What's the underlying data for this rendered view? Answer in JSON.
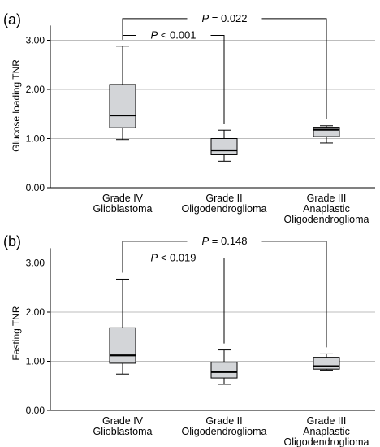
{
  "chart_data": [
    {
      "type": "box",
      "panel_label": "(a)",
      "ylabel": "Glucose loading TNR",
      "ylim": [
        0,
        3.3
      ],
      "yticks": [
        "0.00",
        "1.00",
        "2.00",
        "3.00"
      ],
      "grid": true,
      "categories": [
        [
          "Grade IV",
          "Glioblastoma"
        ],
        [
          "Grade II",
          "Oligodendroglioma"
        ],
        [
          "Grade III",
          "Anaplastic",
          "Oligodendroglioma"
        ]
      ],
      "boxes": [
        {
          "min": 0.98,
          "q1": 1.22,
          "median": 1.47,
          "q3": 2.1,
          "max": 2.88
        },
        {
          "min": 0.54,
          "q1": 0.67,
          "median": 0.76,
          "q3": 1.0,
          "max": 1.17
        },
        {
          "min": 0.91,
          "q1": 1.04,
          "median": 1.18,
          "q3": 1.23,
          "max": 1.26
        }
      ],
      "comparisons": [
        {
          "from": 0,
          "to": 1,
          "p": "P",
          "rel": " < 0.001",
          "level": 3.1
        },
        {
          "from": 0,
          "to": 2,
          "p": "P",
          "rel": " = 0.022",
          "level": 3.44
        }
      ]
    },
    {
      "type": "box",
      "panel_label": "(b)",
      "ylabel": "Fasting TNR",
      "ylim": [
        0,
        3.3
      ],
      "yticks": [
        "0.00",
        "1.00",
        "2.00",
        "3.00"
      ],
      "grid": true,
      "categories": [
        [
          "Grade IV",
          "Glioblastoma"
        ],
        [
          "Grade II",
          "Oligodendroglioma"
        ],
        [
          "Grade III",
          "Anaplastic",
          "Oligodendroglioma"
        ]
      ],
      "boxes": [
        {
          "min": 0.74,
          "q1": 0.96,
          "median": 1.12,
          "q3": 1.68,
          "max": 2.67
        },
        {
          "min": 0.53,
          "q1": 0.66,
          "median": 0.78,
          "q3": 0.98,
          "max": 1.23
        },
        {
          "min": 0.82,
          "q1": 0.84,
          "median": 0.9,
          "q3": 1.08,
          "max": 1.15
        }
      ],
      "comparisons": [
        {
          "from": 0,
          "to": 1,
          "p": "P",
          "rel": " < 0.019",
          "level": 3.1
        },
        {
          "from": 0,
          "to": 2,
          "p": "P",
          "rel": " = 0.148",
          "level": 3.44
        }
      ]
    }
  ]
}
